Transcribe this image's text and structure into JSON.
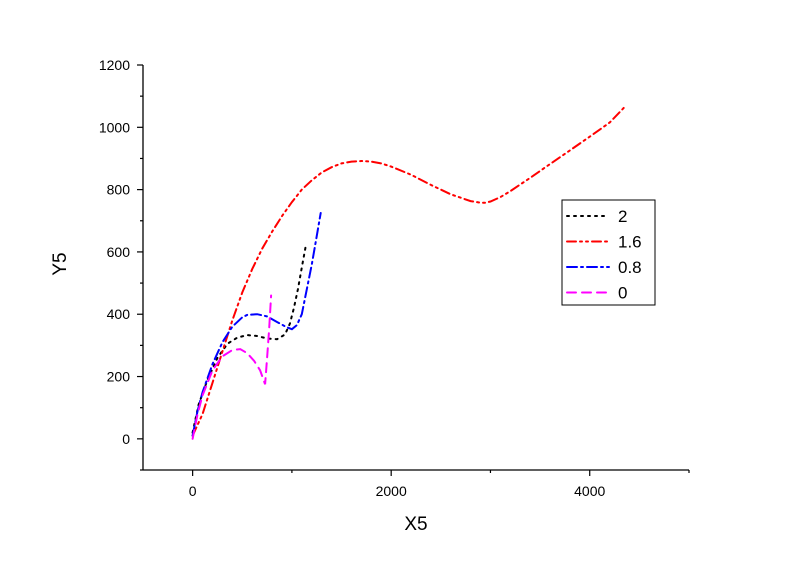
{
  "chart_data": {
    "type": "line",
    "title": "",
    "xlabel": "X5",
    "ylabel": "Y5",
    "xlim": [
      -500,
      5000
    ],
    "ylim": [
      -100,
      1200
    ],
    "x_ticks": [
      0,
      2000,
      4000
    ],
    "y_ticks": [
      0,
      200,
      400,
      600,
      800,
      1000,
      1200
    ],
    "grid": false,
    "legend_position": "right",
    "series": [
      {
        "name": "2",
        "color": "#000000",
        "dash": "dot",
        "points": [
          [
            0,
            20
          ],
          [
            60,
            110
          ],
          [
            150,
            190
          ],
          [
            250,
            260
          ],
          [
            350,
            305
          ],
          [
            450,
            325
          ],
          [
            550,
            333
          ],
          [
            650,
            330
          ],
          [
            750,
            322
          ],
          [
            850,
            320
          ],
          [
            930,
            335
          ],
          [
            980,
            370
          ],
          [
            1020,
            420
          ],
          [
            1060,
            480
          ],
          [
            1100,
            550
          ],
          [
            1140,
            620
          ]
        ]
      },
      {
        "name": "1.6",
        "color": "#ff0000",
        "dash": "dash-dot-dot",
        "points": [
          [
            0,
            10
          ],
          [
            100,
            80
          ],
          [
            200,
            180
          ],
          [
            300,
            280
          ],
          [
            400,
            380
          ],
          [
            500,
            470
          ],
          [
            600,
            545
          ],
          [
            700,
            610
          ],
          [
            800,
            665
          ],
          [
            900,
            715
          ],
          [
            1000,
            760
          ],
          [
            1100,
            800
          ],
          [
            1200,
            830
          ],
          [
            1300,
            855
          ],
          [
            1400,
            872
          ],
          [
            1500,
            884
          ],
          [
            1600,
            890
          ],
          [
            1700,
            892
          ],
          [
            1800,
            890
          ],
          [
            1900,
            884
          ],
          [
            2000,
            874
          ],
          [
            2200,
            848
          ],
          [
            2400,
            815
          ],
          [
            2600,
            785
          ],
          [
            2800,
            763
          ],
          [
            2900,
            758
          ],
          [
            2950,
            758
          ],
          [
            3000,
            762
          ],
          [
            3100,
            776
          ],
          [
            3200,
            795
          ],
          [
            3400,
            838
          ],
          [
            3600,
            882
          ],
          [
            3800,
            926
          ],
          [
            4000,
            970
          ],
          [
            4200,
            1015
          ],
          [
            4350,
            1065
          ]
        ]
      },
      {
        "name": "0.8",
        "color": "#0000ff",
        "dash": "dash-dot",
        "points": [
          [
            0,
            10
          ],
          [
            50,
            90
          ],
          [
            100,
            150
          ],
          [
            200,
            240
          ],
          [
            300,
            310
          ],
          [
            400,
            360
          ],
          [
            500,
            390
          ],
          [
            550,
            398
          ],
          [
            650,
            400
          ],
          [
            750,
            393
          ],
          [
            850,
            375
          ],
          [
            950,
            358
          ],
          [
            1000,
            352
          ],
          [
            1050,
            365
          ],
          [
            1100,
            400
          ],
          [
            1150,
            480
          ],
          [
            1200,
            560
          ],
          [
            1250,
            650
          ],
          [
            1290,
            725
          ]
        ]
      },
      {
        "name": "0",
        "color": "#ff00ff",
        "dash": "dash",
        "points": [
          [
            0,
            0
          ],
          [
            50,
            80
          ],
          [
            100,
            140
          ],
          [
            200,
            220
          ],
          [
            300,
            265
          ],
          [
            400,
            285
          ],
          [
            480,
            288
          ],
          [
            550,
            275
          ],
          [
            620,
            250
          ],
          [
            680,
            220
          ],
          [
            730,
            175
          ],
          [
            750,
            260
          ],
          [
            770,
            350
          ],
          [
            790,
            460
          ]
        ]
      }
    ]
  }
}
